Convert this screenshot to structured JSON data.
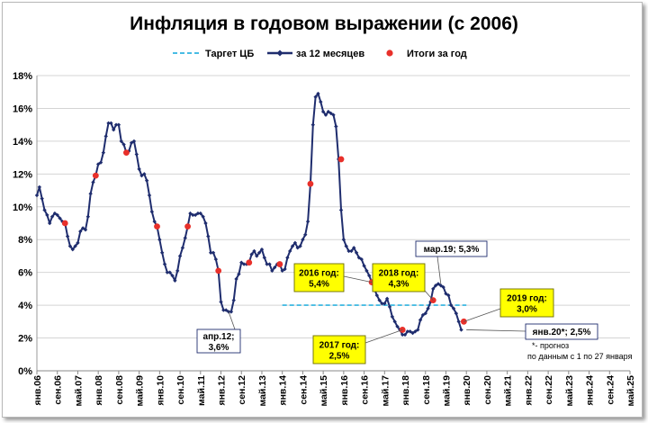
{
  "chart_data": {
    "type": "line",
    "title": "Инфляция в годовом выражении (с 2006)",
    "ylim": [
      0,
      18
    ],
    "ytick_labels": [
      "0%",
      "2%",
      "4%",
      "6%",
      "8%",
      "10%",
      "12%",
      "14%",
      "16%",
      "18%"
    ],
    "xtick_labels": [
      "янв.06",
      "сен.06",
      "май.07",
      "янв.08",
      "сен.08",
      "май.09",
      "янв.10",
      "сен.10",
      "май.11",
      "янв.12",
      "сен.12",
      "май.13",
      "янв.14",
      "сен.14",
      "май.15",
      "янв.16",
      "сен.16",
      "май.17",
      "янв.18",
      "сен.18",
      "май.19",
      "янв.20",
      "сен.20",
      "май.21",
      "янв.22",
      "сен.22",
      "май.23",
      "янв.24",
      "сен.24",
      "май.25"
    ],
    "grid": true,
    "legend": {
      "position": "top",
      "items": [
        {
          "label": "Таргет ЦБ",
          "color": "#2eb3e0",
          "style": "dashed"
        },
        {
          "label": "за 12 месяцев",
          "color": "#1f2d6e",
          "style": "line-marker"
        },
        {
          "label": "Итоги за год",
          "color": "#e8302a",
          "style": "dot"
        }
      ]
    },
    "series": [
      {
        "name": "за 12 месяцев",
        "start": "янв.06",
        "values": [
          10.7,
          11.2,
          10.5,
          9.8,
          9.5,
          9.0,
          9.4,
          9.6,
          9.5,
          9.3,
          9.1,
          9.0,
          8.2,
          7.6,
          7.4,
          7.6,
          7.8,
          8.5,
          8.7,
          8.6,
          9.4,
          10.8,
          11.5,
          11.9,
          12.6,
          12.7,
          13.3,
          14.3,
          15.1,
          15.1,
          14.7,
          15.0,
          15.0,
          14.0,
          13.8,
          13.3,
          13.4,
          13.9,
          14.0,
          13.2,
          12.3,
          11.9,
          12.0,
          11.6,
          10.7,
          9.7,
          9.1,
          8.8,
          8.0,
          7.2,
          6.5,
          6.0,
          6.0,
          5.8,
          5.5,
          6.1,
          7.0,
          7.5,
          8.1,
          8.8,
          9.6,
          9.5,
          9.5,
          9.6,
          9.6,
          9.4,
          9.0,
          8.2,
          7.2,
          7.2,
          6.8,
          6.1,
          4.2,
          3.7,
          3.7,
          3.6,
          3.6,
          4.3,
          5.6,
          5.9,
          6.6,
          6.5,
          6.5,
          6.6,
          7.1,
          7.3,
          7.0,
          7.2,
          7.4,
          6.9,
          6.5,
          6.5,
          6.1,
          6.3,
          6.5,
          6.5,
          6.1,
          6.2,
          6.9,
          7.3,
          7.6,
          7.8,
          7.5,
          7.6,
          8.0,
          8.3,
          9.1,
          11.4,
          15.0,
          16.7,
          16.9,
          16.4,
          15.8,
          15.6,
          15.8,
          15.7,
          15.6,
          14.9,
          12.9,
          9.8,
          8.0,
          7.6,
          7.3,
          7.3,
          7.5,
          7.2,
          6.9,
          6.8,
          6.4,
          6.1,
          5.8,
          5.4,
          5.0,
          4.6,
          4.3,
          4.1,
          4.1,
          4.4,
          3.9,
          3.3,
          3.0,
          2.7,
          2.5,
          2.2,
          2.2,
          2.4,
          2.4,
          2.3,
          2.4,
          2.5,
          3.1,
          3.4,
          3.5,
          3.8,
          4.2,
          5.0,
          5.2,
          5.3,
          5.2,
          5.1,
          4.7,
          4.6,
          4.0,
          3.8,
          3.5,
          3.0,
          2.5
        ],
        "color": "#1f2d6e"
      },
      {
        "name": "Итоги за год",
        "type": "scatter",
        "x": [
          "дек.06",
          "дек.07",
          "дек.08",
          "дек.09",
          "дек.10",
          "дек.11",
          "дек.12",
          "дек.13",
          "дек.14",
          "дек.15",
          "дек.16",
          "дек.17",
          "дек.18",
          "дек.19"
        ],
        "values": [
          9.0,
          11.9,
          13.3,
          8.8,
          8.8,
          6.1,
          6.6,
          6.5,
          11.4,
          12.9,
          5.4,
          2.5,
          4.3,
          3.0
        ],
        "color": "#e8302a"
      },
      {
        "name": "Таргет ЦБ",
        "type": "line",
        "x": [
          "янв.14",
          "янв.20"
        ],
        "values": [
          4.0,
          4.0
        ],
        "color": "#2eb3e0"
      }
    ],
    "annotations": [
      {
        "lines": [
          "апр.12;",
          "3,6%"
        ],
        "style": "white",
        "x": "апр.12",
        "y": 3.6
      },
      {
        "lines": [
          "2016 год:",
          "5,4%"
        ],
        "style": "yellow",
        "x": "дек.16",
        "y": 5.4
      },
      {
        "lines": [
          "2017 год:",
          "2,5%"
        ],
        "style": "yellow",
        "x": "дек.17",
        "y": 2.5
      },
      {
        "lines": [
          "2018 год:",
          "4,3%"
        ],
        "style": "yellow",
        "x": "дек.18",
        "y": 4.3
      },
      {
        "lines": [
          "мар.19; 5,3%"
        ],
        "style": "white",
        "x": "мар.19",
        "y": 5.3
      },
      {
        "lines": [
          "2019 год:",
          "3,0%"
        ],
        "style": "yellow",
        "x": "дек.19",
        "y": 3.0
      },
      {
        "lines": [
          "янв.20*; 2,5%"
        ],
        "style": "white",
        "x": "янв.20",
        "y": 2.5
      }
    ],
    "note": [
      "*- прогноз",
      "по данным с 1 по 27 января"
    ]
  }
}
